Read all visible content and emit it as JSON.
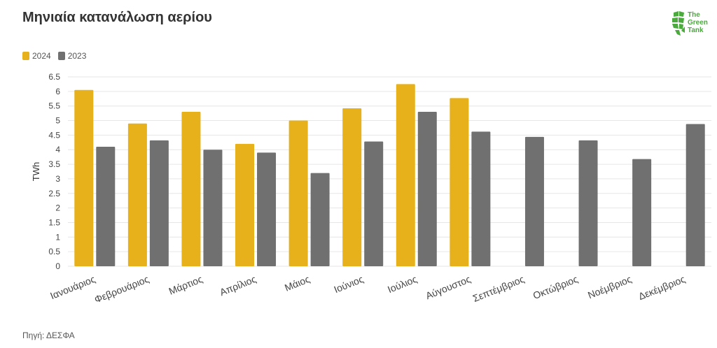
{
  "header": {
    "title": "Μηνιαία κατανάλωση αερίου",
    "logo_text": [
      "The",
      "Green",
      "Tank"
    ]
  },
  "footer": {
    "source": "Πηγή: ΔΕΣΦΑ"
  },
  "colors": {
    "series_2024": "#e6b11a",
    "series_2023": "#707070",
    "grid": "#e6e6e6",
    "axis_text": "#444444",
    "logo": "#4aaa3c"
  },
  "chart_data": {
    "type": "bar",
    "title": "Μηνιαία κατανάλωση αερίου",
    "xlabel": "",
    "ylabel": "TWh",
    "ylim": [
      0,
      6.5
    ],
    "yticks": [
      "0",
      "0.5",
      "1",
      "1.5",
      "2",
      "2.5",
      "3",
      "3.5",
      "4",
      "4.5",
      "5",
      "5.5",
      "6",
      "6.5"
    ],
    "grid": true,
    "legend": "top-left",
    "categories": [
      "Ιανουάριος",
      "Φεβρουάριος",
      "Μάρτιος",
      "Απρίλιος",
      "Μάιος",
      "Ιούνιος",
      "Ιούλιος",
      "Αύγουστος",
      "Σεπτέμβριος",
      "Οκτώβριος",
      "Νοέμβριος",
      "Δεκέμβριος"
    ],
    "series": [
      {
        "name": "2024",
        "color": "#e6b11a",
        "values": [
          6.05,
          4.9,
          5.3,
          4.2,
          5.0,
          5.42,
          6.25,
          5.77,
          null,
          null,
          null,
          null
        ]
      },
      {
        "name": "2023",
        "color": "#707070",
        "values": [
          4.1,
          4.32,
          4.0,
          3.9,
          3.2,
          4.28,
          5.3,
          4.62,
          4.44,
          4.32,
          3.68,
          4.88
        ]
      }
    ]
  }
}
